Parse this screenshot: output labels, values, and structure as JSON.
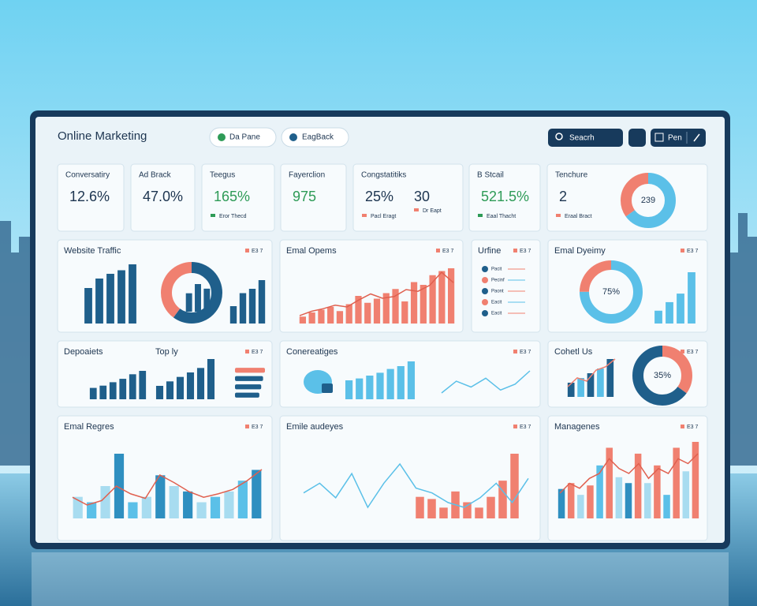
{
  "header": {
    "title": "Online Marketing",
    "tabs": [
      "Da Pane",
      "EagBack"
    ],
    "search": "Seacrh",
    "menu": "Pen"
  },
  "kpis": [
    {
      "label": "Conversatiry",
      "value": "12.6%"
    },
    {
      "label": "Ad Brack",
      "value": "47.0%"
    },
    {
      "label": "Teegus",
      "value": "165%",
      "note": "Eror Thecd"
    },
    {
      "label": "Fayerclion",
      "value": "975"
    },
    {
      "label": "Congstatitiks",
      "value": "25%",
      "value2": "30",
      "note": "Pacl Eragt",
      "note2": "Dr Eapt"
    },
    {
      "label": "B Stcail",
      "value": "521.5%",
      "note": "Eaal Thacht"
    },
    {
      "label": "Tenchure",
      "value": "2",
      "note": "Eraal Bract",
      "donut": {
        "values": [
          65,
          35
        ],
        "colors": [
          "#5bc0e8",
          "#f08070"
        ],
        "center": "239"
      }
    }
  ],
  "panels": [
    {
      "title": "Website Traffic",
      "badge": "E3 7",
      "charts": [
        {
          "type": "bar",
          "values": [
            30,
            38,
            42,
            45,
            50
          ],
          "color": "#1f5f8b"
        },
        {
          "type": "donut",
          "values": [
            60,
            40
          ],
          "colors": [
            "#1f5f8b",
            "#f08070"
          ]
        },
        {
          "type": "bar",
          "values": [
            20,
            30,
            25
          ],
          "color": "#1f5f8b"
        },
        {
          "type": "bar",
          "values": [
            20,
            35,
            40,
            50
          ],
          "color": "#1f5f8b"
        }
      ]
    },
    {
      "title": "Emal Opems",
      "badge": "E3 7",
      "charts": [
        {
          "type": "bar",
          "values": [
            5,
            8,
            10,
            12,
            9,
            14,
            20,
            15,
            18,
            22,
            25,
            16,
            30,
            28,
            35,
            38,
            40
          ],
          "color": "#f08070"
        },
        {
          "type": "line",
          "values": [
            10,
            15,
            18,
            22,
            20,
            28,
            35,
            30,
            32,
            40,
            38,
            45,
            60,
            48
          ],
          "color": "#e0604f"
        }
      ]
    },
    {
      "title": "Urfine",
      "badge": "E3 7",
      "items": [
        "Pacit",
        "Pecinf",
        "Paont",
        "Eacit",
        "Eacit"
      ],
      "charts": []
    },
    {
      "title": "Emal Dyeimy",
      "badge": "E3 7",
      "charts": [
        {
          "type": "donut",
          "values": [
            75,
            25
          ],
          "colors": [
            "#5bc0e8",
            "#f08070"
          ],
          "center": "75%"
        },
        {
          "type": "bar",
          "values": [
            15,
            25,
            35,
            60
          ],
          "color": "#5bc0e8"
        }
      ]
    },
    {
      "title": "Depoaiets",
      "subtitle": "Top ly",
      "badge": "E3 7",
      "charts": [
        {
          "type": "bar",
          "values": [
            10,
            12,
            15,
            18,
            22,
            25
          ],
          "color": "#1f5f8b"
        },
        {
          "type": "bar",
          "values": [
            15,
            20,
            25,
            30,
            35,
            45
          ],
          "color": "#1f5f8b"
        },
        {
          "type": "hbar",
          "values": [
            80,
            75,
            70,
            65
          ],
          "colors": [
            "#f08070",
            "#1f5f8b",
            "#1f5f8b",
            "#1f5f8b"
          ]
        }
      ]
    },
    {
      "title": "Conereatiges",
      "badge": "E3 7",
      "charts": [
        {
          "type": "bar",
          "values": [
            20,
            22,
            25,
            28,
            32,
            35,
            40
          ],
          "color": "#5bc0e8"
        },
        {
          "type": "line",
          "values": [
            10,
            18,
            14,
            20,
            12,
            16,
            25
          ],
          "color": "#5bc0e8"
        }
      ]
    },
    {
      "title": "Cohetl Us",
      "badge": "E3 7",
      "charts": [
        {
          "type": "bar",
          "values": [
            15,
            20,
            25,
            30,
            40
          ],
          "colors": [
            "#1f5f8b",
            "#5bc0e8",
            "#1f5f8b",
            "#5bc0e8",
            "#1f5f8b"
          ]
        },
        {
          "type": "line",
          "values": [
            20,
            28,
            25,
            35,
            38,
            45
          ],
          "color": "#f08070"
        },
        {
          "type": "donut",
          "values": [
            35,
            65
          ],
          "colors": [
            "#f08070",
            "#1f5f8b"
          ],
          "center": "35%"
        }
      ]
    },
    {
      "title": "Emal Regres",
      "badge": "E3 7",
      "charts": [
        {
          "type": "bar",
          "values": [
            20,
            15,
            30,
            60,
            15,
            20,
            40,
            30,
            25,
            15,
            20,
            25,
            35,
            45
          ],
          "colors": [
            "#a8dcf0",
            "#5bc0e8",
            "#a8dcf0",
            "#2f8fc0",
            "#5bc0e8",
            "#a8dcf0",
            "#2f8fc0",
            "#a8dcf0",
            "#2f8fc0",
            "#a8dcf0",
            "#5bc0e8",
            "#a8dcf0",
            "#5bc0e8",
            "#2f8fc0"
          ]
        },
        {
          "type": "line",
          "values": [
            25,
            18,
            22,
            35,
            28,
            24,
            45,
            38,
            30,
            25,
            28,
            32,
            40,
            50
          ],
          "color": "#e0604f"
        }
      ]
    },
    {
      "title": "Emile audeyes",
      "badge": "E3 7",
      "charts": [
        {
          "type": "bar",
          "values": [
            20,
            18,
            10,
            25,
            15,
            10,
            20,
            35,
            60
          ],
          "color": "#f08070"
        },
        {
          "type": "line",
          "values": [
            40,
            50,
            35,
            60,
            25,
            50,
            70,
            45,
            40,
            30,
            25,
            35,
            50,
            30,
            55
          ],
          "color": "#5bc0e8"
        }
      ]
    },
    {
      "title": "Managenes",
      "badge": "E3 7",
      "charts": [
        {
          "type": "bar",
          "values": [
            25,
            30,
            20,
            28,
            45,
            60,
            35,
            30,
            55,
            30,
            45,
            20,
            60,
            40,
            65
          ],
          "colors": [
            "#2f8fc0",
            "#f08070",
            "#a8dcf0",
            "#f08070",
            "#5bc0e8",
            "#f08070",
            "#a8dcf0",
            "#2f8fc0",
            "#f08070",
            "#a8dcf0",
            "#f08070",
            "#5bc0e8",
            "#f08070",
            "#a8dcf0",
            "#f08070"
          ]
        },
        {
          "type": "line",
          "values": [
            20,
            30,
            25,
            35,
            40,
            55,
            45,
            40,
            50,
            35,
            45,
            40,
            55,
            50,
            60
          ],
          "color": "#e0604f"
        }
      ]
    }
  ]
}
